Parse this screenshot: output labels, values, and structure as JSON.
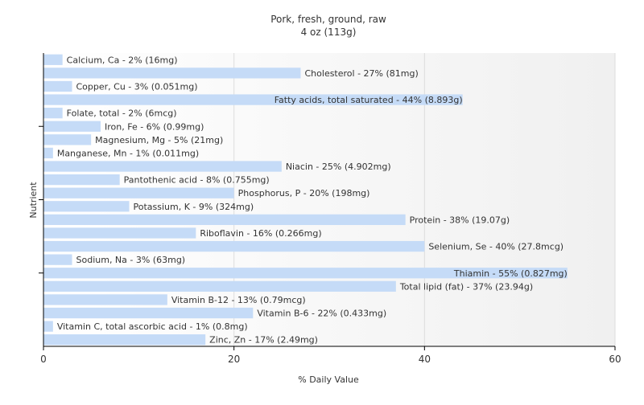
{
  "chart_data": {
    "type": "bar",
    "orientation": "horizontal",
    "title": "Pork, fresh, ground, raw",
    "subtitle": "4 oz (113g)",
    "xlabel": "% Daily Value",
    "ylabel": "Nutrient",
    "xlim": [
      0,
      60
    ],
    "xticks": [
      0,
      20,
      40,
      60
    ],
    "grid": true,
    "bar_color": "#c5dbf7",
    "background_gradient": [
      "#ffffff",
      "#f0f0f0"
    ],
    "bars": [
      {
        "name": "Calcium, Ca",
        "value": 2,
        "label": "Calcium, Ca - 2% (16mg)"
      },
      {
        "name": "Cholesterol",
        "value": 27,
        "label": "Cholesterol - 27% (81mg)"
      },
      {
        "name": "Copper, Cu",
        "value": 3,
        "label": "Copper, Cu - 3% (0.051mg)"
      },
      {
        "name": "Fatty acids, total saturated",
        "value": 44,
        "label": "Fatty acids, total saturated - 44% (8.893g)"
      },
      {
        "name": "Folate, total",
        "value": 2,
        "label": "Folate, total - 2% (6mcg)"
      },
      {
        "name": "Iron, Fe",
        "value": 6,
        "label": "Iron, Fe - 6% (0.99mg)"
      },
      {
        "name": "Magnesium, Mg",
        "value": 5,
        "label": "Magnesium, Mg - 5% (21mg)"
      },
      {
        "name": "Manganese, Mn",
        "value": 1,
        "label": "Manganese, Mn - 1% (0.011mg)"
      },
      {
        "name": "Niacin",
        "value": 25,
        "label": "Niacin - 25% (4.902mg)"
      },
      {
        "name": "Pantothenic acid",
        "value": 8,
        "label": "Pantothenic acid - 8% (0.755mg)"
      },
      {
        "name": "Phosphorus, P",
        "value": 20,
        "label": "Phosphorus, P - 20% (198mg)"
      },
      {
        "name": "Potassium, K",
        "value": 9,
        "label": "Potassium, K - 9% (324mg)"
      },
      {
        "name": "Protein",
        "value": 38,
        "label": "Protein - 38% (19.07g)"
      },
      {
        "name": "Riboflavin",
        "value": 16,
        "label": "Riboflavin - 16% (0.266mg)"
      },
      {
        "name": "Selenium, Se",
        "value": 40,
        "label": "Selenium, Se - 40% (27.8mcg)"
      },
      {
        "name": "Sodium, Na",
        "value": 3,
        "label": "Sodium, Na - 3% (63mg)"
      },
      {
        "name": "Thiamin",
        "value": 55,
        "label": "Thiamin - 55% (0.827mg)"
      },
      {
        "name": "Total lipid (fat)",
        "value": 37,
        "label": "Total lipid (fat) - 37% (23.94g)"
      },
      {
        "name": "Vitamin B-12",
        "value": 13,
        "label": "Vitamin B-12 - 13% (0.79mcg)"
      },
      {
        "name": "Vitamin B-6",
        "value": 22,
        "label": "Vitamin B-6 - 22% (0.433mg)"
      },
      {
        "name": "Vitamin C, total ascorbic acid",
        "value": 1,
        "label": "Vitamin C, total ascorbic acid - 1% (0.8mg)"
      },
      {
        "name": "Zinc, Zn",
        "value": 17,
        "label": "Zinc, Zn - 17% (2.49mg)"
      }
    ]
  }
}
